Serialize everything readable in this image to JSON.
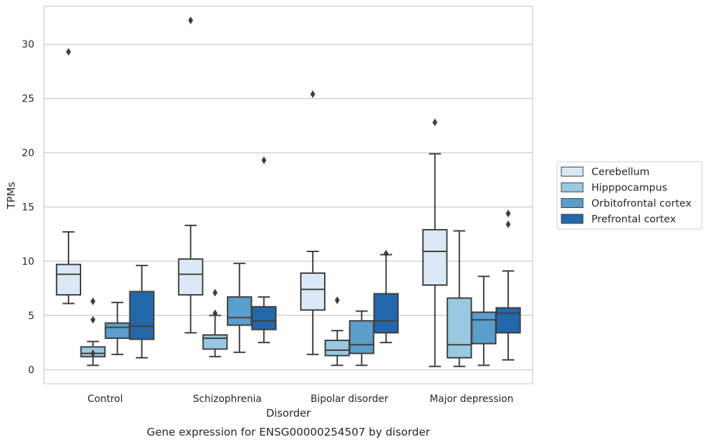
{
  "chart_data": {
    "type": "boxplot",
    "caption": "Gene expression for ENSG00000254507 by disorder",
    "xlabel": "Disorder",
    "ylabel": "TPMs",
    "ylim": [
      -1.3,
      33.5
    ],
    "yticks": [
      0,
      5,
      10,
      15,
      20,
      25,
      30
    ],
    "grid": "horizontal",
    "legend_position": "right",
    "categories": [
      "Control",
      "Schizophrenia",
      "Bipolar disorder",
      "Major depression"
    ],
    "series": [
      {
        "name": "Cerebellum",
        "color": "#dbe9f6",
        "boxes": [
          {
            "whislo": 6.1,
            "q1": 6.9,
            "med": 8.8,
            "q3": 9.7,
            "whishi": 12.7,
            "fliers": [
              29.3
            ]
          },
          {
            "whislo": 3.4,
            "q1": 6.9,
            "med": 8.8,
            "q3": 10.2,
            "whishi": 13.3,
            "fliers": [
              32.2
            ]
          },
          {
            "whislo": 1.4,
            "q1": 5.5,
            "med": 7.4,
            "q3": 8.9,
            "whishi": 10.9,
            "fliers": [
              25.4
            ]
          },
          {
            "whislo": 0.3,
            "q1": 7.8,
            "med": 10.9,
            "q3": 12.9,
            "whishi": 19.9,
            "fliers": [
              22.8
            ]
          }
        ]
      },
      {
        "name": "Hipppocampus",
        "color": "#9ac8e0",
        "boxes": [
          {
            "whislo": 0.4,
            "q1": 1.2,
            "med": 1.5,
            "q3": 2.1,
            "whishi": 2.6,
            "fliers": [
              6.3,
              4.6,
              1.5
            ]
          },
          {
            "whislo": 1.2,
            "q1": 1.9,
            "med": 2.9,
            "q3": 3.2,
            "whishi": 5.0,
            "fliers": [
              7.1,
              5.2
            ]
          },
          {
            "whislo": 0.4,
            "q1": 1.3,
            "med": 1.8,
            "q3": 2.7,
            "whishi": 3.6,
            "fliers": [
              6.4
            ]
          },
          {
            "whislo": 0.3,
            "q1": 1.1,
            "med": 2.3,
            "q3": 6.6,
            "whishi": 12.8,
            "fliers": []
          }
        ]
      },
      {
        "name": "Orbitofrontal cortex",
        "color": "#5a9ecb",
        "boxes": [
          {
            "whislo": 1.4,
            "q1": 2.9,
            "med": 3.9,
            "q3": 4.3,
            "whishi": 6.2,
            "fliers": []
          },
          {
            "whislo": 1.6,
            "q1": 4.1,
            "med": 4.8,
            "q3": 6.7,
            "whishi": 9.8,
            "fliers": []
          },
          {
            "whislo": 0.4,
            "q1": 1.5,
            "med": 2.3,
            "q3": 4.5,
            "whishi": 5.4,
            "fliers": []
          },
          {
            "whislo": 0.4,
            "q1": 2.4,
            "med": 4.6,
            "q3": 5.3,
            "whishi": 8.6,
            "fliers": []
          }
        ]
      },
      {
        "name": "Prefrontal cortex",
        "color": "#2367ab",
        "boxes": [
          {
            "whislo": 1.1,
            "q1": 2.8,
            "med": 4.0,
            "q3": 7.2,
            "whishi": 9.6,
            "fliers": []
          },
          {
            "whislo": 2.5,
            "q1": 3.7,
            "med": 4.5,
            "q3": 5.8,
            "whishi": 6.7,
            "fliers": [
              19.3
            ]
          },
          {
            "whislo": 2.5,
            "q1": 3.4,
            "med": 4.5,
            "q3": 7.0,
            "whishi": 10.6,
            "fliers": [
              10.7
            ]
          },
          {
            "whislo": 0.9,
            "q1": 3.4,
            "med": 5.2,
            "q3": 5.7,
            "whishi": 9.1,
            "fliers": [
              13.4,
              14.4
            ]
          }
        ]
      }
    ]
  }
}
